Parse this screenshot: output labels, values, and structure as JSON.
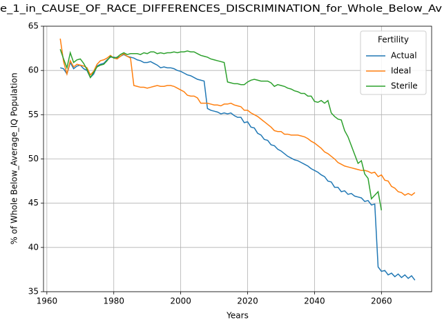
{
  "chart_data": {
    "type": "line",
    "title": "e_1_in_CAUSE_OF_RACE_DIFFERENCES_DISCRIMINATION_for_Whole_Below_Av",
    "xlabel": "Years",
    "ylabel": "% of Whole Below_Average_IQ Population",
    "legend_title": "Fertility",
    "legend": "upper right",
    "grid": true,
    "xlim": [
      1959,
      2075
    ],
    "xticks": [
      1960,
      1980,
      2000,
      2020,
      2040,
      2060
    ],
    "ylim": [
      35,
      65
    ],
    "yticks": [
      35,
      40,
      45,
      50,
      55,
      60,
      65
    ],
    "x": [
      1964,
      1965,
      1966,
      1967,
      1968,
      1969,
      1970,
      1971,
      1972,
      1973,
      1974,
      1975,
      1976,
      1977,
      1978,
      1979,
      1980,
      1981,
      1982,
      1983,
      1984,
      1985,
      1986,
      1987,
      1988,
      1989,
      1990,
      1991,
      1992,
      1993,
      1994,
      1995,
      1996,
      1997,
      1998,
      1999,
      2000,
      2001,
      2002,
      2003,
      2004,
      2005,
      2006,
      2007,
      2008,
      2009,
      2010,
      2011,
      2012,
      2013,
      2014,
      2015,
      2016,
      2017,
      2018,
      2019,
      2020,
      2021,
      2022,
      2023,
      2024,
      2025,
      2026,
      2027,
      2028,
      2029,
      2030,
      2031,
      2032,
      2033,
      2034,
      2035,
      2036,
      2037,
      2038,
      2039,
      2040,
      2041,
      2042,
      2043,
      2044,
      2045,
      2046,
      2047,
      2048,
      2049,
      2050,
      2051,
      2052,
      2053,
      2054,
      2055,
      2056,
      2057,
      2058,
      2059,
      2060,
      2061,
      2062,
      2063,
      2064,
      2065,
      2066,
      2067,
      2068,
      2069,
      2070
    ],
    "series": [
      {
        "name": "Actual",
        "color": "#1f77b4",
        "values": [
          60.3,
          60.2,
          59.6,
          60.9,
          60.2,
          60.5,
          60.6,
          60.2,
          60.0,
          59.2,
          59.6,
          60.5,
          60.7,
          60.8,
          61.2,
          61.5,
          61.5,
          61.4,
          61.6,
          61.8,
          61.6,
          61.5,
          61.4,
          61.2,
          61.1,
          60.9,
          60.9,
          61.0,
          60.8,
          60.6,
          60.3,
          60.4,
          60.3,
          60.3,
          60.2,
          60.0,
          59.9,
          59.7,
          59.5,
          59.4,
          59.2,
          59.0,
          58.9,
          58.8,
          55.7,
          55.5,
          55.4,
          55.3,
          55.1,
          55.2,
          55.1,
          55.2,
          54.9,
          54.7,
          54.7,
          54.1,
          54.2,
          53.6,
          53.5,
          52.9,
          52.7,
          52.2,
          52.1,
          51.6,
          51.5,
          51.1,
          50.9,
          50.6,
          50.3,
          50.1,
          49.9,
          49.8,
          49.6,
          49.4,
          49.2,
          48.9,
          48.7,
          48.5,
          48.2,
          48.0,
          47.5,
          47.4,
          46.8,
          46.8,
          46.3,
          46.4,
          46.0,
          46.1,
          45.8,
          45.7,
          45.6,
          45.2,
          45.3,
          44.8,
          44.9,
          37.8,
          37.3,
          37.4,
          36.9,
          37.1,
          36.7,
          37.0,
          36.6,
          36.9,
          36.5,
          36.8,
          36.3
        ]
      },
      {
        "name": "Ideal",
        "color": "#ff7f0e",
        "values": [
          63.6,
          61.0,
          59.6,
          61.1,
          60.4,
          60.7,
          60.6,
          60.5,
          60.3,
          59.5,
          59.9,
          60.7,
          61.1,
          61.2,
          61.4,
          61.7,
          61.4,
          61.3,
          61.6,
          61.9,
          61.6,
          61.4,
          58.3,
          58.2,
          58.1,
          58.1,
          58.0,
          58.1,
          58.2,
          58.3,
          58.2,
          58.2,
          58.3,
          58.3,
          58.2,
          58.0,
          57.8,
          57.6,
          57.2,
          57.1,
          57.1,
          56.9,
          56.3,
          56.3,
          56.3,
          56.2,
          56.1,
          56.1,
          56.0,
          56.2,
          56.2,
          56.3,
          56.1,
          56.0,
          55.9,
          55.5,
          55.5,
          55.2,
          55.0,
          54.8,
          54.5,
          54.2,
          53.9,
          53.6,
          53.2,
          53.1,
          53.1,
          52.8,
          52.8,
          52.7,
          52.7,
          52.7,
          52.6,
          52.5,
          52.3,
          52.0,
          51.8,
          51.5,
          51.2,
          50.8,
          50.6,
          50.3,
          50.0,
          49.6,
          49.4,
          49.2,
          49.1,
          49.0,
          48.9,
          48.8,
          48.7,
          48.7,
          48.6,
          48.4,
          48.5,
          48.0,
          48.2,
          47.6,
          47.5,
          46.9,
          46.7,
          46.3,
          46.2,
          45.9,
          46.1,
          45.9,
          46.2
        ]
      },
      {
        "name": "Sterile",
        "color": "#2ca02c",
        "values": [
          62.4,
          61.3,
          60.3,
          62.0,
          60.9,
          61.2,
          61.3,
          60.8,
          60.1,
          59.2,
          59.8,
          60.4,
          60.6,
          60.7,
          61.1,
          61.6,
          61.4,
          61.5,
          61.8,
          62.0,
          61.8,
          61.9,
          61.9,
          61.9,
          61.8,
          62.0,
          61.9,
          62.1,
          62.1,
          61.9,
          62.0,
          61.9,
          62.0,
          62.0,
          62.1,
          62.0,
          62.1,
          62.1,
          62.2,
          62.1,
          62.1,
          61.9,
          61.7,
          61.6,
          61.5,
          61.3,
          61.2,
          61.1,
          61.0,
          60.9,
          58.7,
          58.6,
          58.5,
          58.5,
          58.4,
          58.4,
          58.7,
          58.9,
          59.0,
          58.9,
          58.8,
          58.8,
          58.8,
          58.6,
          58.2,
          58.4,
          58.3,
          58.2,
          58.0,
          57.9,
          57.7,
          57.6,
          57.4,
          57.4,
          57.1,
          57.1,
          56.5,
          56.4,
          56.6,
          56.3,
          56.6,
          55.2,
          54.8,
          54.5,
          54.4,
          53.2,
          52.5,
          51.5,
          50.5,
          49.5,
          49.8,
          48.3,
          47.8,
          45.5,
          45.9,
          46.3,
          44.2,
          null,
          null,
          null,
          null,
          null,
          null,
          null,
          null,
          null,
          null
        ]
      }
    ]
  }
}
